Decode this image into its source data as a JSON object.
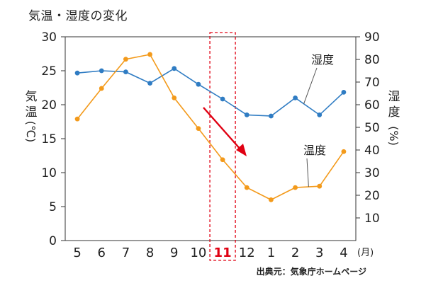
{
  "chart_data": {
    "type": "line",
    "title": "気温・湿度の変化",
    "source": "出典元：気象庁ホームページ",
    "x_unit": "(月)",
    "categories": [
      "5",
      "6",
      "7",
      "8",
      "9",
      "10",
      "11",
      "12",
      "1",
      "2",
      "3",
      "4"
    ],
    "highlight_category": "11",
    "y_left_label": [
      "気",
      "温",
      "(℃)"
    ],
    "y_right_label": [
      "湿",
      "度",
      "(%)"
    ],
    "y_left_ticks": [
      "0",
      "5",
      "10",
      "15",
      "20",
      "25",
      "30"
    ],
    "y_right_ticks": [
      "10",
      "20",
      "30",
      "40",
      "50",
      "60",
      "70",
      "80",
      "90"
    ],
    "ylim_left": [
      0,
      30
    ],
    "ylim_right": [
      0,
      90
    ],
    "series": [
      {
        "name": "湿度",
        "axis": "right",
        "color": "#2f7cc3",
        "values": [
          74,
          75,
          74.5,
          69.5,
          76,
          69,
          62.5,
          55.5,
          55,
          63,
          55.5,
          65.5
        ]
      },
      {
        "name": "温度",
        "axis": "left",
        "color": "#f39a1b",
        "values": [
          17.9,
          22.4,
          26.7,
          27.4,
          21.0,
          16.5,
          11.9,
          7.8,
          6.0,
          7.8,
          8.0,
          13.1
        ]
      }
    ],
    "grid": false,
    "annotation": {
      "type": "arrow",
      "color": "#e00012"
    }
  }
}
